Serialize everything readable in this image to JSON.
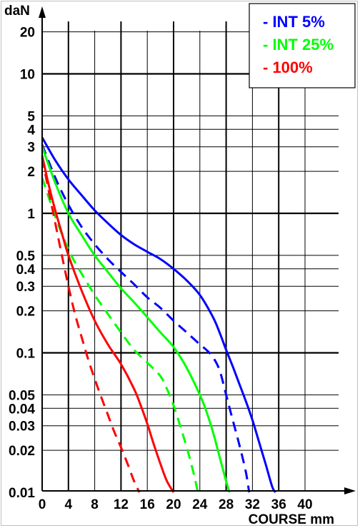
{
  "chart_data": {
    "type": "line",
    "xlabel": "COURSE mm",
    "ylabel": "daN",
    "x_scale": "linear",
    "y_scale": "log",
    "xlim": [
      0,
      40
    ],
    "ylim": [
      0.01,
      30
    ],
    "grid": true,
    "x_ticks": [
      0,
      4,
      8,
      12,
      16,
      20,
      24,
      28,
      32,
      36,
      40
    ],
    "x_tick_labels": [
      "0",
      "4",
      "8",
      "12",
      "16",
      "20",
      "24",
      "28",
      "32",
      "36",
      "40"
    ],
    "y_ticks": [
      20,
      10,
      5,
      4,
      3,
      2,
      1,
      0.5,
      0.4,
      0.3,
      0.2,
      0.1,
      0.05,
      0.04,
      0.03,
      0.02,
      0.01
    ],
    "y_tick_labels": [
      "20",
      "10",
      "5",
      "4",
      "3",
      "2",
      "1",
      "0.5",
      "0.4",
      "0.3",
      "0.2",
      "0.1",
      "0.05",
      "0.04",
      "0.03",
      "0.02",
      "0.01"
    ],
    "legend_position": "top-right",
    "legend": [
      {
        "label": "- INT 5%",
        "color": "#0000ff"
      },
      {
        "label": "- INT 25%",
        "color": "#00ff00"
      },
      {
        "label": "- 100%",
        "color": "#ff0000"
      }
    ],
    "series": [
      {
        "color": "#0000ff",
        "style": "solid",
        "x": [
          0,
          2,
          4,
          6,
          8,
          10,
          12,
          14,
          16,
          18,
          20,
          22,
          24,
          26,
          27,
          28,
          29,
          30,
          31,
          32,
          33,
          34,
          35,
          35.5
        ],
        "y": [
          3.5,
          2.4,
          1.75,
          1.35,
          1.05,
          0.85,
          0.7,
          0.6,
          0.53,
          0.47,
          0.4,
          0.33,
          0.26,
          0.18,
          0.14,
          0.105,
          0.08,
          0.06,
          0.045,
          0.033,
          0.023,
          0.016,
          0.011,
          0.01
        ]
      },
      {
        "color": "#0000ff",
        "style": "dashed",
        "x": [
          0,
          2,
          4,
          6,
          8,
          10,
          12,
          14,
          16,
          18,
          20,
          22,
          24,
          25,
          26,
          27,
          28,
          29,
          30,
          31,
          31.5
        ],
        "y": [
          3.1,
          1.8,
          1.15,
          0.8,
          0.6,
          0.47,
          0.38,
          0.31,
          0.25,
          0.21,
          0.17,
          0.14,
          0.115,
          0.105,
          0.093,
          0.075,
          0.05,
          0.033,
          0.022,
          0.014,
          0.01
        ]
      },
      {
        "color": "#00ff00",
        "style": "solid",
        "x": [
          0,
          2,
          4,
          6,
          8,
          10,
          12,
          14,
          16,
          18,
          20,
          22,
          24,
          25,
          26,
          27,
          28,
          28.5
        ],
        "y": [
          3.0,
          1.65,
          1.0,
          0.7,
          0.5,
          0.38,
          0.29,
          0.23,
          0.18,
          0.14,
          0.11,
          0.078,
          0.05,
          0.038,
          0.027,
          0.018,
          0.012,
          0.01
        ]
      },
      {
        "color": "#00ff00",
        "style": "dashed",
        "x": [
          0,
          2,
          4,
          6,
          8,
          10,
          12,
          14,
          16,
          18,
          19,
          20,
          21,
          22,
          23,
          23.7
        ],
        "y": [
          1.8,
          0.95,
          0.55,
          0.37,
          0.26,
          0.19,
          0.14,
          0.105,
          0.085,
          0.068,
          0.055,
          0.042,
          0.03,
          0.021,
          0.014,
          0.01
        ]
      },
      {
        "color": "#ff0000",
        "style": "solid",
        "x": [
          0,
          1,
          2,
          3,
          4,
          6,
          8,
          10,
          12,
          14,
          15,
          16,
          17,
          18,
          19,
          20
        ],
        "y": [
          2.6,
          1.6,
          1.05,
          0.72,
          0.5,
          0.28,
          0.17,
          0.115,
          0.083,
          0.055,
          0.042,
          0.031,
          0.022,
          0.016,
          0.012,
          0.01
        ]
      },
      {
        "color": "#ff0000",
        "style": "dashed",
        "x": [
          0,
          1,
          2,
          3,
          4,
          5,
          6,
          7,
          8,
          9,
          10,
          11,
          12,
          13,
          14,
          14.8
        ],
        "y": [
          2.5,
          1.45,
          0.85,
          0.5,
          0.3,
          0.19,
          0.13,
          0.09,
          0.065,
          0.048,
          0.036,
          0.027,
          0.021,
          0.016,
          0.012,
          0.01
        ]
      }
    ]
  }
}
